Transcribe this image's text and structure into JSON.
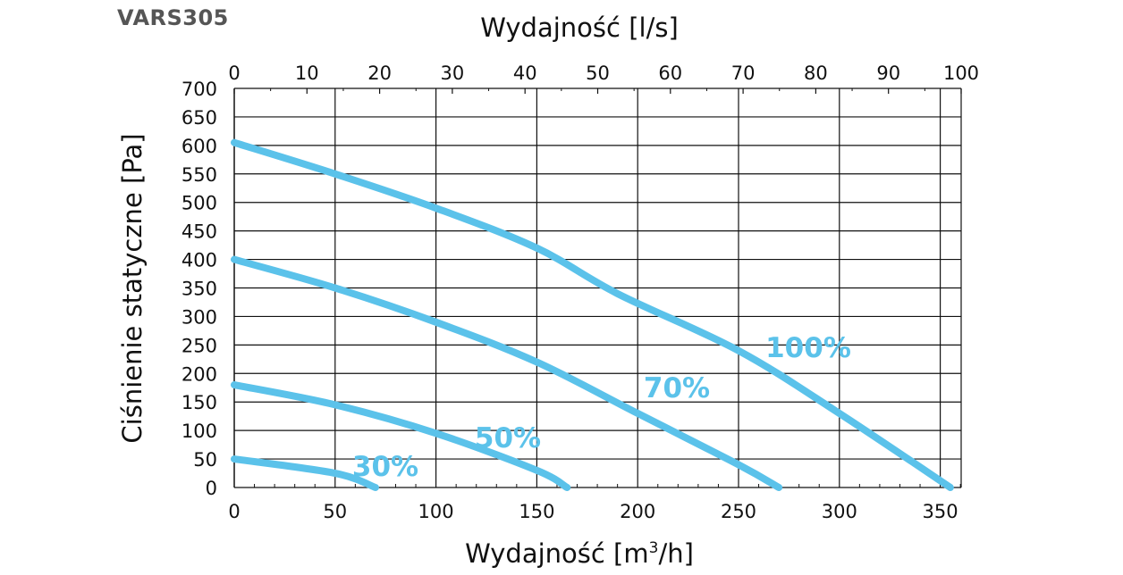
{
  "brand": "VARS305",
  "chart_data": {
    "type": "line",
    "x_bottom": {
      "label": "Wydajność [m3/h]",
      "label_parts": [
        "Wydajność [m",
        "3",
        "/h]"
      ],
      "range": [
        0,
        360
      ],
      "ticks": [
        0,
        50,
        100,
        150,
        200,
        250,
        300,
        350
      ]
    },
    "x_top": {
      "label": "Wydajność [l/s]",
      "range": [
        0,
        100
      ],
      "ticks": [
        0,
        10,
        20,
        30,
        40,
        50,
        60,
        70,
        80,
        90,
        100
      ]
    },
    "y": {
      "label": "Ciśnienie statyczne [Pa]",
      "range": [
        0,
        700
      ],
      "ticks": [
        0,
        50,
        100,
        150,
        200,
        250,
        300,
        350,
        400,
        450,
        500,
        550,
        600,
        650,
        700
      ]
    },
    "grid": true,
    "series": [
      {
        "name": "100%",
        "color": "#5bc2ea",
        "points": [
          [
            0,
            605
          ],
          [
            50,
            550
          ],
          [
            100,
            490
          ],
          [
            150,
            420
          ],
          [
            190,
            340
          ],
          [
            250,
            240
          ],
          [
            300,
            130
          ],
          [
            355,
            0
          ]
        ]
      },
      {
        "name": "70%",
        "color": "#5bc2ea",
        "points": [
          [
            0,
            400
          ],
          [
            50,
            350
          ],
          [
            100,
            290
          ],
          [
            150,
            220
          ],
          [
            200,
            130
          ],
          [
            250,
            40
          ],
          [
            270,
            0
          ]
        ]
      },
      {
        "name": "50%",
        "color": "#5bc2ea",
        "points": [
          [
            0,
            180
          ],
          [
            50,
            145
          ],
          [
            100,
            95
          ],
          [
            150,
            30
          ],
          [
            165,
            0
          ]
        ]
      },
      {
        "name": "30%",
        "color": "#5bc2ea",
        "points": [
          [
            0,
            50
          ],
          [
            50,
            25
          ],
          [
            70,
            0
          ]
        ]
      }
    ]
  }
}
